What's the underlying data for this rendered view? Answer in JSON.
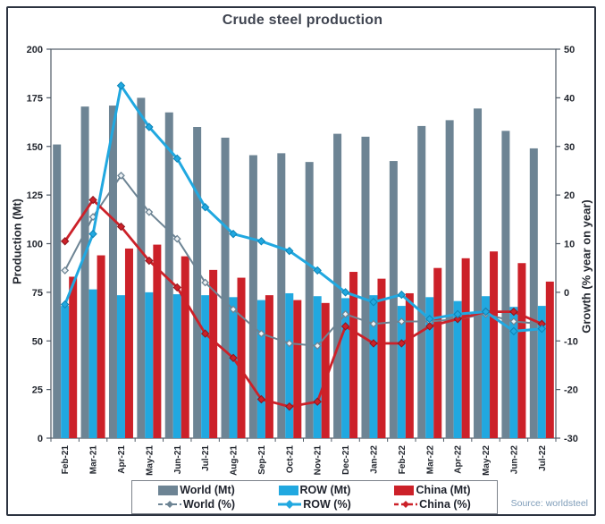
{
  "title": "Crude steel production",
  "source_note": "Source: worldsteel",
  "colors": {
    "world": "#6d8494",
    "row": "#21a8e0",
    "china": "#cc2129",
    "frame_border": "#2c3340",
    "axis_text": "#23272f",
    "source_text": "#7f9db9"
  },
  "chart_data": {
    "type": "combo-bar-line",
    "title": "Crude steel production",
    "categories": [
      "Feb-21",
      "Mar-21",
      "Apr-21",
      "May-21",
      "Jun-21",
      "Jul-21",
      "Aug-21",
      "Sep-21",
      "Oct-21",
      "Nov-21",
      "Dec-21",
      "Jan-22",
      "Feb-22",
      "Mar-22",
      "Apr-22",
      "May-22",
      "Jun-22",
      "Jul-22"
    ],
    "left_axis": {
      "label": "Production (Mt)",
      "min": 0,
      "max": 200,
      "ticks": [
        0,
        25,
        50,
        75,
        100,
        125,
        150,
        175,
        200
      ]
    },
    "right_axis": {
      "label": "Growth (% year on year)",
      "min": -30,
      "max": 50,
      "ticks": [
        -30,
        -20,
        -10,
        0,
        10,
        20,
        30,
        40,
        50
      ]
    },
    "grid": false,
    "legend_position": "bottom",
    "bar_series": [
      {
        "name": "World (Mt)",
        "axis": "left",
        "color": "#6d8494",
        "values": [
          151,
          170.5,
          171,
          175,
          167.5,
          160,
          154.5,
          145.5,
          146.5,
          142,
          156.5,
          155,
          142.5,
          160.5,
          163.5,
          169.5,
          158,
          149
        ]
      },
      {
        "name": "ROW (Mt)",
        "axis": "left",
        "color": "#21a8e0",
        "values": [
          68,
          76.5,
          73.5,
          75,
          74,
          73.5,
          72.5,
          71,
          74.5,
          73,
          72,
          73.5,
          68,
          72.5,
          70.5,
          73,
          67.5,
          68
        ]
      },
      {
        "name": "China (Mt)",
        "axis": "left",
        "color": "#cc2129",
        "values": [
          83,
          94,
          97.5,
          99.5,
          93.5,
          86.5,
          82.5,
          73.5,
          71,
          69.5,
          85.5,
          82,
          74.5,
          87.5,
          92.5,
          96,
          90,
          80.5
        ]
      }
    ],
    "line_series": [
      {
        "name": "World (%)",
        "axis": "right",
        "color": "#6d8494",
        "values": [
          4.5,
          15.5,
          24,
          16.5,
          11,
          2,
          -3.5,
          -8.5,
          -10.5,
          -11,
          -4.5,
          -6.5,
          -6,
          -6,
          -5.5,
          -4.5,
          -6,
          -6.5
        ]
      },
      {
        "name": "ROW (%)",
        "axis": "right",
        "color": "#21a8e0",
        "values": [
          -2.5,
          12,
          42.5,
          34,
          27.5,
          17.5,
          12,
          10.5,
          8.5,
          4.5,
          0,
          -2,
          -0.5,
          -5.5,
          -4.5,
          -4,
          -8,
          -7.5
        ]
      },
      {
        "name": "China (%)",
        "axis": "right",
        "color": "#cc2129",
        "values": [
          10.5,
          19,
          13.5,
          6.5,
          1,
          -8.5,
          -13.5,
          -22,
          -23.5,
          -22.5,
          -7,
          -10.5,
          -10.5,
          -7,
          -5.5,
          -4,
          -4,
          -6.5
        ]
      }
    ]
  }
}
